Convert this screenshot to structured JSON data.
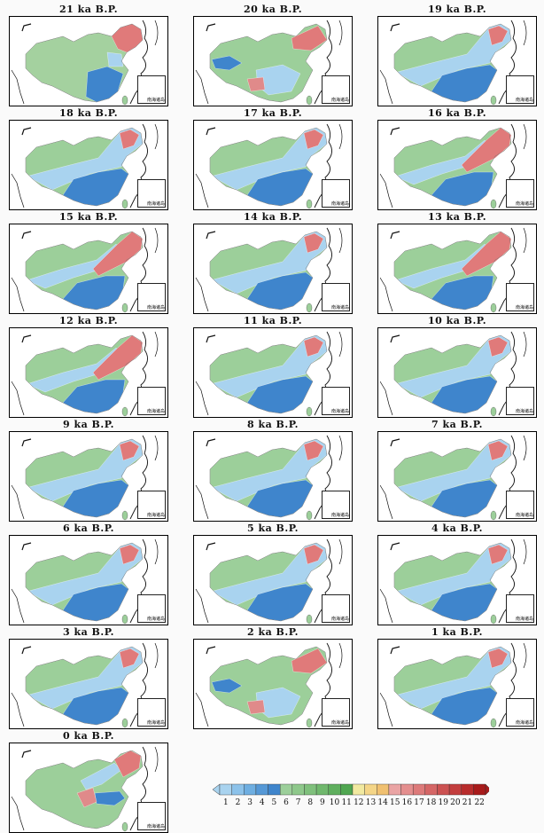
{
  "panels": [
    {
      "title": "21 ka B.P.",
      "scheme": "a"
    },
    {
      "title": "20 ka B.P.",
      "scheme": "b"
    },
    {
      "title": "19 ka B.P.",
      "scheme": "c"
    },
    {
      "title": "18 ka B.P.",
      "scheme": "c"
    },
    {
      "title": "17 ka B.P.",
      "scheme": "c"
    },
    {
      "title": "16 ka B.P.",
      "scheme": "d"
    },
    {
      "title": "15 ka B.P.",
      "scheme": "d"
    },
    {
      "title": "14 ka B.P.",
      "scheme": "c"
    },
    {
      "title": "13 ka B.P.",
      "scheme": "d"
    },
    {
      "title": "12 ka B.P.",
      "scheme": "d"
    },
    {
      "title": "11 ka B.P.",
      "scheme": "c"
    },
    {
      "title": "10 ka B.P.",
      "scheme": "c"
    },
    {
      "title": "9 ka B.P.",
      "scheme": "c"
    },
    {
      "title": "8 ka B.P.",
      "scheme": "c"
    },
    {
      "title": "7 ka B.P.",
      "scheme": "c"
    },
    {
      "title": "6 ka B.P.",
      "scheme": "c"
    },
    {
      "title": "5 ka B.P.",
      "scheme": "c"
    },
    {
      "title": "4 ka B.P.",
      "scheme": "c"
    },
    {
      "title": "3 ka B.P.",
      "scheme": "c"
    },
    {
      "title": "2 ka B.P.",
      "scheme": "b"
    },
    {
      "title": "1 ka B.P.",
      "scheme": "c"
    },
    {
      "title": "0 ka B.P.",
      "scheme": "e"
    }
  ],
  "inset_label": "南海诸岛",
  "legend": {
    "ticks": [
      "1",
      "2",
      "3",
      "4",
      "5",
      "6",
      "7",
      "8",
      "9",
      "10",
      "11",
      "12",
      "13",
      "14",
      "15",
      "16",
      "17",
      "18",
      "19",
      "20",
      "21",
      "22"
    ],
    "colors": [
      "#a9d3ef",
      "#8cc2ea",
      "#6eaee1",
      "#5598d6",
      "#3f85cc",
      "#9ccf9a",
      "#8ec88b",
      "#7fc07c",
      "#70b86d",
      "#5faf5e",
      "#4fa650",
      "#f1e9a0",
      "#f4d587",
      "#f0c070",
      "#eaa4a4",
      "#e48e8e",
      "#dd7a7a",
      "#d56666",
      "#cc5252",
      "#c33e3e",
      "#b82c2c",
      "#a81a1a"
    ]
  },
  "colors": {
    "blue_light": "#a9d3ef",
    "blue_dark": "#3f85cc",
    "green": "#9ccf9a",
    "red": "#e07a7a"
  }
}
